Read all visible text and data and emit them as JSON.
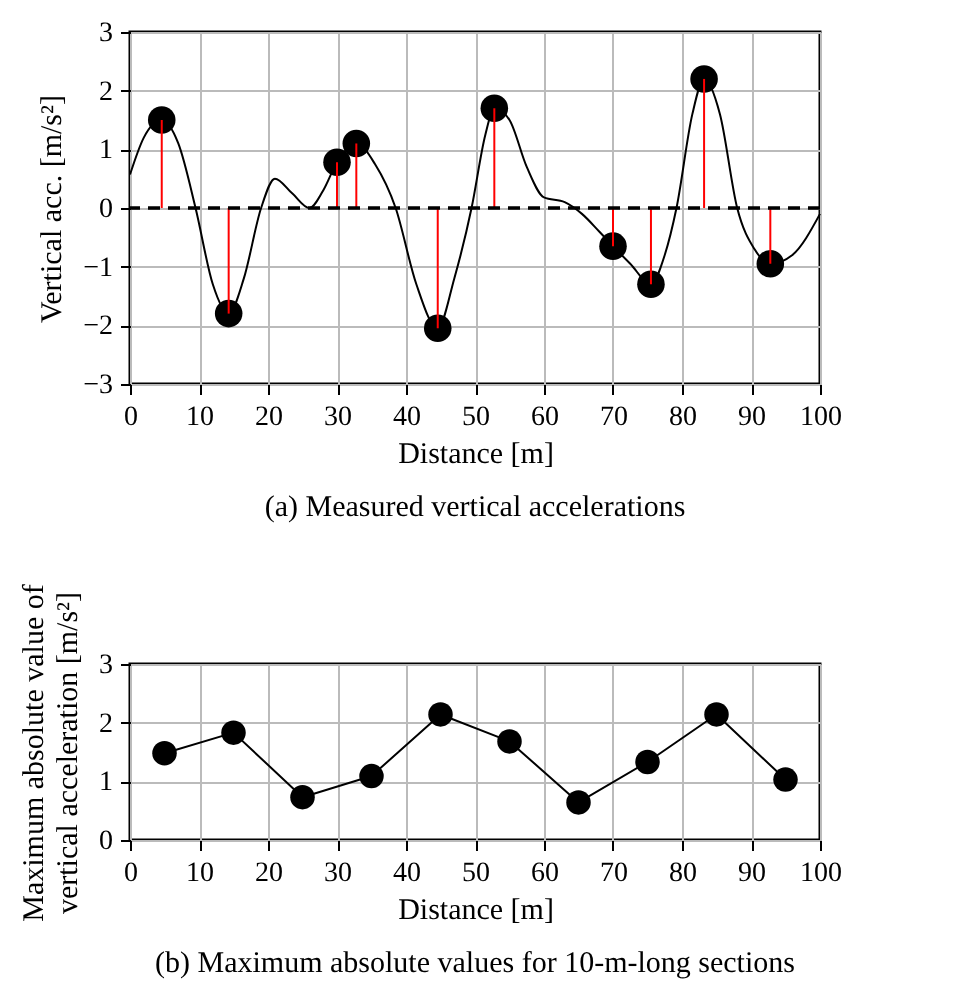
{
  "chart_data": [
    {
      "type": "line",
      "title": "(a) Measured vertical accelerations",
      "xlabel": "Distance [m]",
      "ylabel": "Vertical acc.  [m/s²]",
      "series": [
        {
          "type": "line",
          "marker": "none",
          "color": "#000000",
          "x": [
            0,
            2,
            4.6,
            7,
            9.5,
            12,
            14.3,
            16.5,
            19,
            21,
            23.5,
            26,
            28,
            30,
            32.8,
            35.5,
            38.5,
            41.5,
            44.6,
            47,
            49.5,
            51.5,
            52.8,
            55,
            57.5,
            60,
            63,
            65.5,
            68,
            70,
            72.5,
            75.5,
            77.5,
            79.2,
            81.5,
            83.2,
            85.5,
            88,
            90.5,
            92.8,
            96,
            100
          ],
          "values": [
            0.57,
            1.2,
            1.5,
            1.1,
            0,
            -1.3,
            -1.8,
            -1.2,
            0,
            0.5,
            0.25,
            0,
            0.3,
            0.78,
            1.1,
            0.75,
            0,
            -1.3,
            -2.05,
            -1.2,
            0,
            1.25,
            1.7,
            1.5,
            0.7,
            0.18,
            0.1,
            -0.1,
            -0.4,
            -0.65,
            -0.95,
            -1.3,
            -0.8,
            0,
            1.6,
            2.2,
            1.6,
            0,
            -0.7,
            -0.95,
            -0.8,
            -0.1
          ]
        },
        {
          "type": "scatter",
          "color": "#000000",
          "x": [
            4.6,
            14.3,
            30,
            32.8,
            44.6,
            52.8,
            70,
            75.5,
            83.2,
            92.8
          ],
          "values": [
            1.5,
            -1.8,
            0.78,
            1.1,
            -2.05,
            1.7,
            -0.65,
            -1.3,
            2.2,
            -0.95
          ],
          "errors": [
            [
              0,
              1.5
            ],
            [
              -1.8,
              0
            ],
            [
              0,
              0.78
            ],
            [
              0,
              1.1
            ],
            [
              -2.05,
              0
            ],
            [
              0,
              1.7
            ],
            [
              -0.65,
              0
            ],
            [
              -1.3,
              0
            ],
            [
              0,
              2.2
            ],
            [
              -0.95,
              0
            ]
          ]
        }
      ],
      "ref_lines": [
        {
          "axis": "y",
          "value": 0,
          "color": "#000000",
          "line_style": "dashed"
        }
      ],
      "xlim": [
        0,
        100
      ],
      "xticks": [
        0,
        10,
        20,
        30,
        40,
        50,
        60,
        70,
        80,
        90,
        100
      ],
      "ylim": [
        -3,
        3
      ],
      "yticks": [
        -3,
        -2,
        -1,
        0,
        1,
        2,
        3
      ],
      "grid": true,
      "marker": "circle"
    },
    {
      "type": "line",
      "title": "(b) Maximum absolute values for 10-m-long sections",
      "xlabel": "Distance [m]",
      "ylabel": "Maximum absolute value of vertical acceleration  [m/s²]",
      "series": [
        {
          "color": "#000000",
          "x": [
            5,
            15,
            25,
            35,
            45,
            55,
            65,
            75,
            85,
            95
          ],
          "values": [
            1.48,
            1.83,
            0.73,
            1.09,
            2.14,
            1.68,
            0.64,
            1.33,
            2.14,
            1.03
          ]
        }
      ],
      "xlim": [
        0,
        100
      ],
      "xticks": [
        0,
        10,
        20,
        30,
        40,
        50,
        60,
        70,
        80,
        90,
        100
      ],
      "ylim": [
        0,
        3
      ],
      "yticks": [
        0,
        1,
        2,
        3
      ],
      "grid": true,
      "marker": "circle"
    }
  ]
}
